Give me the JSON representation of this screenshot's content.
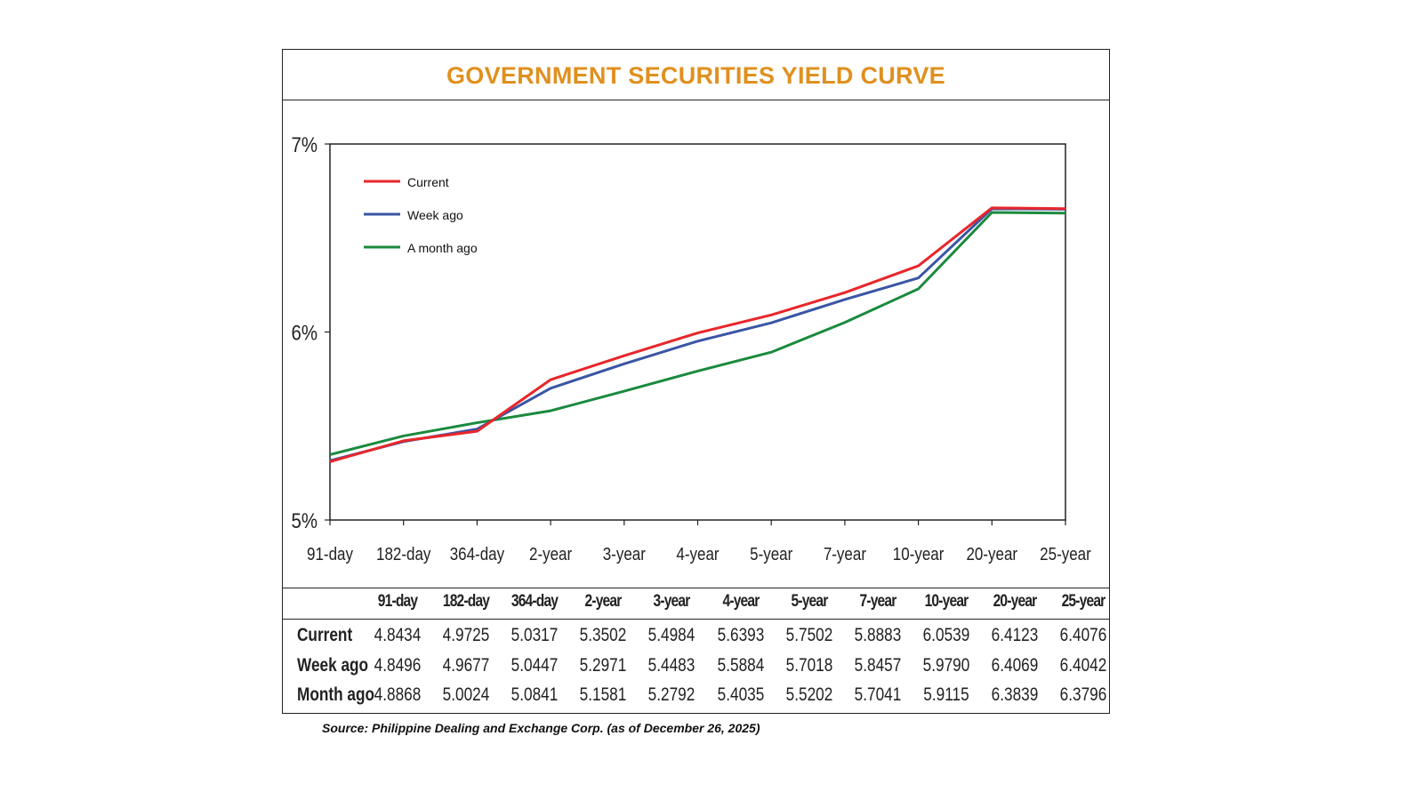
{
  "title": "GOVERNMENT SECURITIES YIELD CURVE",
  "chart_data": {
    "type": "line",
    "title": "GOVERNMENT SECURITIES YIELD CURVE",
    "categories": [
      "91-day",
      "182-day",
      "364-day",
      "2-year",
      "3-year",
      "4-year",
      "5-year",
      "7-year",
      "10-year",
      "20-year",
      "25-year"
    ],
    "y_tick_labels": [
      "5%",
      "6%",
      "7%"
    ],
    "ylim": [
      5,
      7
    ],
    "grid": false,
    "legend_position": "top-left",
    "series": [
      {
        "name": "Current",
        "color": "#e8262a",
        "values": [
          4.8434,
          4.9725,
          5.0317,
          5.3502,
          5.4984,
          5.6393,
          5.7502,
          5.8883,
          6.0539,
          6.4123,
          6.4076
        ]
      },
      {
        "name": "Week ago",
        "color": "#3a55a5",
        "values": [
          4.8496,
          4.9677,
          5.0447,
          5.2971,
          5.4483,
          5.5884,
          5.7018,
          5.8457,
          5.979,
          6.4069,
          6.4042
        ]
      },
      {
        "name": "A month ago",
        "color": "#1a8a3e",
        "values": [
          4.8868,
          5.0024,
          5.0841,
          5.1581,
          5.2792,
          5.4035,
          5.5202,
          5.7041,
          5.9115,
          6.3839,
          6.3796
        ]
      }
    ]
  },
  "table": {
    "headers": [
      "91-day",
      "182-day",
      "364-day",
      "2-year",
      "3-year",
      "4-year",
      "5-year",
      "7-year",
      "10-year",
      "20-year",
      "25-year"
    ],
    "rows": [
      {
        "label": "Current",
        "values": [
          "4.8434",
          "4.9725",
          "5.0317",
          "5.3502",
          "5.4984",
          "5.6393",
          "5.7502",
          "5.8883",
          "6.0539",
          "6.4123",
          "6.4076"
        ]
      },
      {
        "label": "Week ago",
        "values": [
          "4.8496",
          "4.9677",
          "5.0447",
          "5.2971",
          "5.4483",
          "5.5884",
          "5.7018",
          "5.8457",
          "5.9790",
          "6.4069",
          "6.4042"
        ]
      },
      {
        "label": "Month ago",
        "values": [
          "4.8868",
          "5.0024",
          "5.0841",
          "5.1581",
          "5.2792",
          "5.4035",
          "5.5202",
          "5.7041",
          "5.9115",
          "6.3839",
          "6.3796"
        ]
      }
    ]
  },
  "source": "Source: Philippine Dealing and Exchange Corp. (as of December 26, 2025)"
}
